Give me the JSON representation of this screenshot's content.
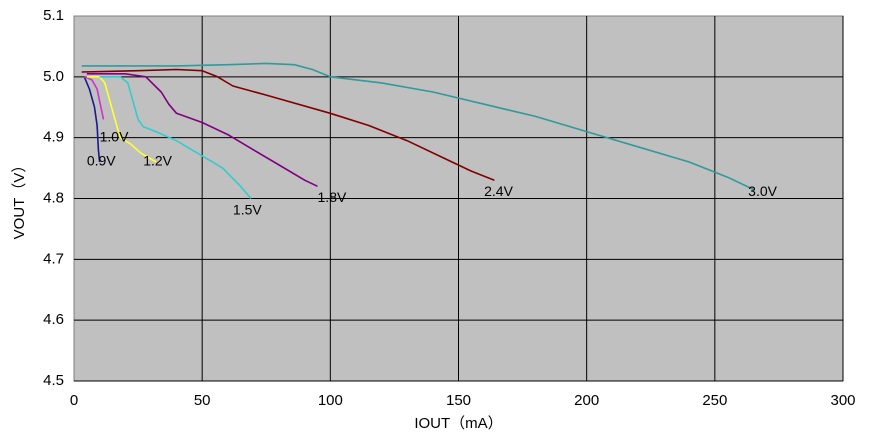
{
  "chart_data": {
    "type": "line",
    "title": "",
    "xlabel": "IOUT（mA）",
    "ylabel": "VOUT（V）",
    "xlim": [
      0,
      300
    ],
    "ylim": [
      4.5,
      5.1
    ],
    "xticks": [
      0,
      50,
      100,
      150,
      200,
      250,
      300
    ],
    "yticks": [
      4.5,
      4.6,
      4.7,
      4.8,
      4.9,
      5.0,
      5.1
    ],
    "xtick_labels": [
      "0",
      "50",
      "100",
      "150",
      "200",
      "250",
      "300"
    ],
    "ytick_labels": [
      "4.5",
      "4.6",
      "4.7",
      "4.8",
      "4.9",
      "5.0",
      "5.1"
    ],
    "grid": true,
    "plot_background": "#c0c0c0",
    "grid_color": "#000000",
    "series": [
      {
        "name": "0.9V",
        "color": "#1a1a8c",
        "points": [
          [
            4,
            5.0
          ],
          [
            6,
            4.98
          ],
          [
            8,
            4.95
          ],
          [
            9,
            4.92
          ],
          [
            9.5,
            4.88
          ],
          [
            10,
            4.86
          ]
        ]
      },
      {
        "name": "1.0V",
        "color": "#cc33cc",
        "points": [
          [
            4,
            5.0
          ],
          [
            7,
            4.995
          ],
          [
            9,
            4.98
          ],
          [
            10,
            4.96
          ],
          [
            11,
            4.94
          ],
          [
            11.5,
            4.93
          ]
        ]
      },
      {
        "name": "1.2V",
        "color": "#ffff33",
        "points": [
          [
            5,
            5.0
          ],
          [
            10,
            5.0
          ],
          [
            12,
            4.99
          ],
          [
            14,
            4.96
          ],
          [
            16,
            4.93
          ],
          [
            18,
            4.9
          ],
          [
            22,
            4.89
          ],
          [
            26,
            4.875
          ],
          [
            30,
            4.865
          ],
          [
            32,
            4.86
          ]
        ]
      },
      {
        "name": "1.5V",
        "color": "#33cccc",
        "points": [
          [
            10,
            5.0
          ],
          [
            18,
            5.0
          ],
          [
            21,
            4.99
          ],
          [
            23,
            4.96
          ],
          [
            25,
            4.93
          ],
          [
            27,
            4.918
          ],
          [
            32,
            4.91
          ],
          [
            40,
            4.895
          ],
          [
            50,
            4.87
          ],
          [
            58,
            4.85
          ],
          [
            65,
            4.82
          ],
          [
            69,
            4.8
          ]
        ]
      },
      {
        "name": "1.8V",
        "color": "#800080",
        "points": [
          [
            5,
            5.005
          ],
          [
            20,
            5.005
          ],
          [
            28,
            5.0
          ],
          [
            34,
            4.975
          ],
          [
            37,
            4.955
          ],
          [
            40,
            4.94
          ],
          [
            50,
            4.925
          ],
          [
            60,
            4.905
          ],
          [
            70,
            4.88
          ],
          [
            80,
            4.855
          ],
          [
            90,
            4.83
          ],
          [
            95,
            4.82
          ]
        ]
      },
      {
        "name": "2.4V",
        "color": "#800000",
        "points": [
          [
            3,
            5.008
          ],
          [
            25,
            5.01
          ],
          [
            40,
            5.012
          ],
          [
            50,
            5.01
          ],
          [
            56,
            5.0
          ],
          [
            62,
            4.985
          ],
          [
            75,
            4.97
          ],
          [
            100,
            4.94
          ],
          [
            115,
            4.92
          ],
          [
            130,
            4.895
          ],
          [
            145,
            4.865
          ],
          [
            155,
            4.845
          ],
          [
            164,
            4.83
          ]
        ]
      },
      {
        "name": "3.0V",
        "color": "#339999",
        "points": [
          [
            3,
            5.018
          ],
          [
            40,
            5.018
          ],
          [
            60,
            5.02
          ],
          [
            75,
            5.022
          ],
          [
            86,
            5.02
          ],
          [
            93,
            5.012
          ],
          [
            100,
            5.0
          ],
          [
            120,
            4.99
          ],
          [
            140,
            4.975
          ],
          [
            160,
            4.955
          ],
          [
            180,
            4.935
          ],
          [
            200,
            4.91
          ],
          [
            220,
            4.885
          ],
          [
            240,
            4.86
          ],
          [
            255,
            4.835
          ],
          [
            265,
            4.815
          ]
        ]
      }
    ],
    "annotations": [
      {
        "text": "0.9V",
        "x": 5,
        "y": 4.86,
        "series": "0.9V"
      },
      {
        "text": "1.0V",
        "x": 10,
        "y": 4.9,
        "series": "1.0V"
      },
      {
        "text": "1.2V",
        "x": 27,
        "y": 4.86,
        "series": "1.2V"
      },
      {
        "text": "1.5V",
        "x": 62,
        "y": 4.78,
        "series": "1.5V"
      },
      {
        "text": "1.8V",
        "x": 95,
        "y": 4.8,
        "series": "1.8V"
      },
      {
        "text": "2.4V",
        "x": 160,
        "y": 4.81,
        "series": "2.4V"
      },
      {
        "text": "3.0V",
        "x": 263,
        "y": 4.81,
        "series": "3.0V"
      }
    ]
  }
}
